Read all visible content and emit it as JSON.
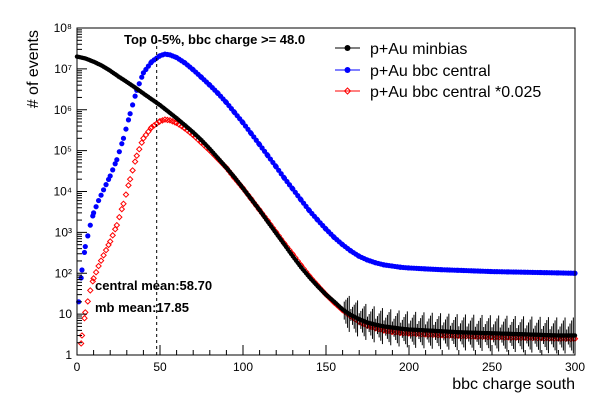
{
  "chart_data": {
    "type": "scatter",
    "title": "Top 0-5%, bbc charge >= 48.0",
    "xlabel": "bbc charge south",
    "ylabel": "# of events",
    "xlim": [
      0,
      300
    ],
    "ylim": [
      1,
      100000000
    ],
    "yscale": "log",
    "grid": false,
    "legend_position": "top-right",
    "x_ticks": [
      0,
      50,
      100,
      150,
      200,
      250,
      300
    ],
    "x_tick_labels": [
      "0",
      "50",
      "100",
      "150",
      "200",
      "250",
      "300"
    ],
    "y_tick_labels": [
      "1",
      "10",
      "10²",
      "10³",
      "10⁴",
      "10⁵",
      "10⁶",
      "10⁷",
      "10⁸"
    ],
    "cut_value": 48.0,
    "annotations": [
      {
        "text": "central mean:58.70"
      },
      {
        "text": "mb mean:17.85"
      }
    ],
    "series": [
      {
        "name": "p+Au minbias",
        "color": "#000000",
        "marker": "circle",
        "points": [
          [
            0,
            20000000.0
          ],
          [
            5,
            18000000.0
          ],
          [
            10,
            15000000.0
          ],
          [
            15,
            12000000.0
          ],
          [
            20,
            9000000.0
          ],
          [
            25,
            6500000.0
          ],
          [
            30,
            4800000.0
          ],
          [
            35,
            3500000.0
          ],
          [
            40,
            2500000.0
          ],
          [
            45,
            1800000.0
          ],
          [
            50,
            1300000.0
          ],
          [
            55,
            900000.0
          ],
          [
            60,
            620000.0
          ],
          [
            65,
            420000.0
          ],
          [
            70,
            280000.0
          ],
          [
            75,
            180000.0
          ],
          [
            80,
            110000.0
          ],
          [
            85,
            65000.0
          ],
          [
            90,
            38000.0
          ],
          [
            95,
            22000.0
          ],
          [
            100,
            12000.0
          ],
          [
            105,
            6500.0
          ],
          [
            110,
            3500.0
          ],
          [
            115,
            1800.0
          ],
          [
            120,
            950
          ],
          [
            125,
            500
          ],
          [
            130,
            260
          ],
          [
            135,
            140
          ],
          [
            140,
            80
          ],
          [
            145,
            48
          ],
          [
            150,
            30
          ],
          [
            155,
            20
          ],
          [
            160,
            13
          ],
          [
            165,
            9.5
          ],
          [
            170,
            7.5
          ],
          [
            175,
            6.2
          ],
          [
            180,
            5.5
          ],
          [
            185,
            5.0
          ],
          [
            190,
            4.7
          ],
          [
            195,
            4.4
          ],
          [
            200,
            4.2
          ],
          [
            210,
            4.0
          ],
          [
            220,
            3.8
          ],
          [
            230,
            3.6
          ],
          [
            240,
            3.5
          ],
          [
            250,
            3.4
          ],
          [
            260,
            3.3
          ],
          [
            270,
            3.2
          ],
          [
            280,
            3.1
          ],
          [
            290,
            3.0
          ],
          [
            300,
            3.0
          ]
        ]
      },
      {
        "name": "p+Au bbc central",
        "color": "#0000ff",
        "marker": "circle",
        "points": [
          [
            1,
            20
          ],
          [
            3,
            120
          ],
          [
            5,
            450
          ],
          [
            8,
            1500
          ],
          [
            10,
            3000
          ],
          [
            13,
            6000
          ],
          [
            16,
            11000.0
          ],
          [
            20,
            24000.0
          ],
          [
            24,
            60000.0
          ],
          [
            28,
            200000.0
          ],
          [
            32,
            800000.0
          ],
          [
            36,
            3000000.0
          ],
          [
            40,
            8000000.0
          ],
          [
            45,
            15000000.0
          ],
          [
            50,
            21000000.0
          ],
          [
            53,
            23000000.0
          ],
          [
            56,
            22000000.0
          ],
          [
            60,
            19000000.0
          ],
          [
            65,
            14000000.0
          ],
          [
            70,
            9500000.0
          ],
          [
            75,
            6200000.0
          ],
          [
            80,
            4000000.0
          ],
          [
            85,
            2500000.0
          ],
          [
            90,
            1500000.0
          ],
          [
            95,
            850000.0
          ],
          [
            100,
            480000.0
          ],
          [
            105,
            260000.0
          ],
          [
            110,
            140000.0
          ],
          [
            115,
            75000.0
          ],
          [
            120,
            40000.0
          ],
          [
            125,
            21000.0
          ],
          [
            130,
            11500.0
          ],
          [
            135,
            6200.0
          ],
          [
            140,
            3400.0
          ],
          [
            145,
            2000.0
          ],
          [
            150,
            1200.0
          ],
          [
            155,
            750
          ],
          [
            160,
            500
          ],
          [
            165,
            350
          ],
          [
            170,
            260
          ],
          [
            175,
            210
          ],
          [
            180,
            180
          ],
          [
            185,
            160
          ],
          [
            190,
            150
          ],
          [
            195,
            140
          ],
          [
            200,
            135
          ],
          [
            210,
            128
          ],
          [
            220,
            122
          ],
          [
            230,
            118
          ],
          [
            240,
            114
          ],
          [
            250,
            110
          ],
          [
            260,
            108
          ],
          [
            270,
            106
          ],
          [
            280,
            104
          ],
          [
            290,
            102
          ],
          [
            300,
            100
          ]
        ]
      },
      {
        "name": "p+Au bbc central *0.025",
        "color": "#ff0000",
        "marker": "diamond",
        "points": [
          [
            1,
            0.5
          ],
          [
            3,
            3
          ],
          [
            5,
            11
          ],
          [
            8,
            38
          ],
          [
            10,
            75
          ],
          [
            13,
            150
          ],
          [
            16,
            275
          ],
          [
            20,
            600
          ],
          [
            24,
            1500
          ],
          [
            28,
            5000
          ],
          [
            32,
            20000.0
          ],
          [
            36,
            75000.0
          ],
          [
            40,
            200000.0
          ],
          [
            45,
            375000.0
          ],
          [
            50,
            525000.0
          ],
          [
            53,
            575000.0
          ],
          [
            56,
            550000.0
          ],
          [
            60,
            475000.0
          ],
          [
            65,
            350000.0
          ],
          [
            70,
            240000.0
          ],
          [
            75,
            155000.0
          ],
          [
            80,
            100000.0
          ],
          [
            85,
            62000.0
          ],
          [
            90,
            38000.0
          ],
          [
            95,
            21000.0
          ],
          [
            100,
            12000.0
          ],
          [
            105,
            6500.0
          ],
          [
            110,
            3500.0
          ],
          [
            115,
            1900.0
          ],
          [
            120,
            1000.0
          ],
          [
            125,
            525
          ],
          [
            130,
            290
          ],
          [
            135,
            155
          ],
          [
            140,
            85
          ],
          [
            145,
            50
          ],
          [
            150,
            30
          ],
          [
            155,
            19
          ],
          [
            160,
            12.5
          ],
          [
            165,
            8.8
          ],
          [
            170,
            6.5
          ],
          [
            175,
            5.2
          ],
          [
            180,
            4.5
          ],
          [
            185,
            4.0
          ],
          [
            190,
            3.7
          ],
          [
            195,
            3.5
          ],
          [
            200,
            3.4
          ],
          [
            210,
            3.2
          ],
          [
            220,
            3.05
          ],
          [
            230,
            2.95
          ],
          [
            240,
            2.85
          ],
          [
            250,
            2.75
          ],
          [
            260,
            2.7
          ],
          [
            270,
            2.65
          ],
          [
            280,
            2.6
          ],
          [
            290,
            2.55
          ],
          [
            300,
            2.5
          ]
        ]
      }
    ]
  }
}
